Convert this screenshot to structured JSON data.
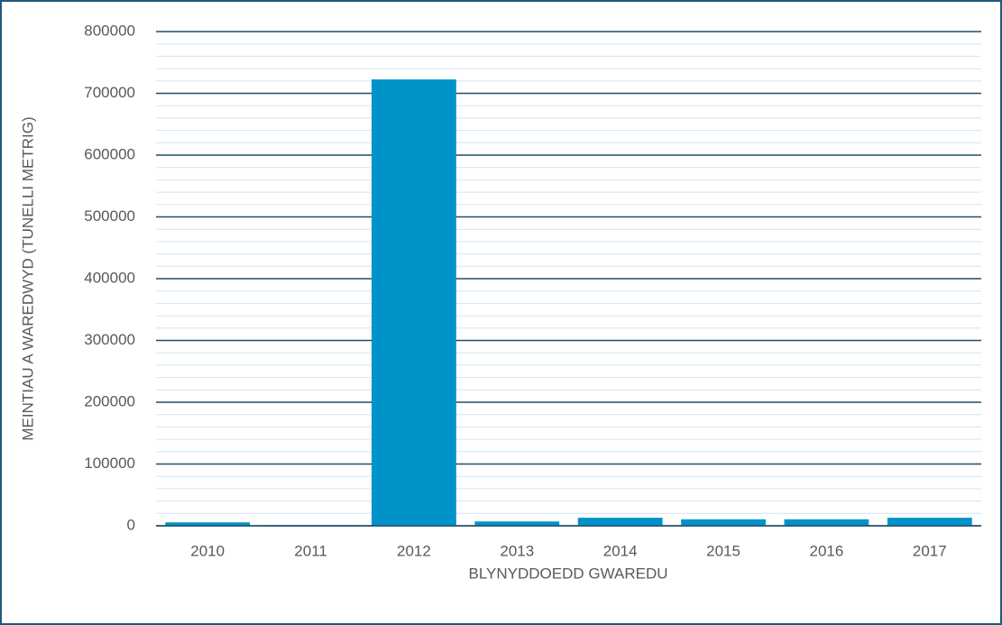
{
  "chart_data": {
    "type": "bar",
    "categories": [
      "2010",
      "2011",
      "2012",
      "2013",
      "2014",
      "2015",
      "2016",
      "2017"
    ],
    "values": [
      5500,
      1000,
      722500,
      7000,
      13000,
      10500,
      10500,
      13000
    ],
    "color": "#0093c9",
    "ylabel": "MEINTIAU A WAREDWYD (TUNELLI METRIG)",
    "xlabel": "BLYNYDDOEDD GWAREDU",
    "ylim": [
      0,
      800000
    ],
    "yticks": [
      0,
      100000,
      200000,
      300000,
      400000,
      500000,
      600000,
      700000,
      800000
    ],
    "minor_yticks": [
      20000,
      40000,
      60000,
      80000,
      120000,
      140000,
      160000,
      180000,
      220000,
      240000,
      260000,
      280000,
      320000,
      340000,
      360000,
      380000,
      420000,
      440000,
      460000,
      480000,
      520000,
      540000,
      560000,
      580000,
      620000,
      640000,
      660000,
      680000,
      720000,
      740000,
      760000,
      780000
    ],
    "grid": true
  }
}
